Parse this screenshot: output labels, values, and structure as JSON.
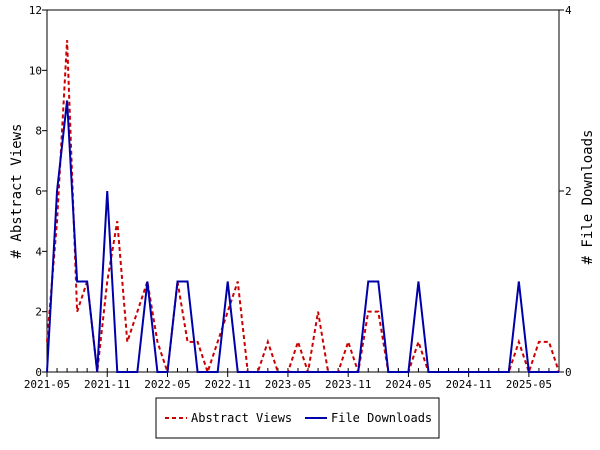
{
  "chart_data": {
    "type": "line",
    "ylabel": "# Abstract Views",
    "y2label": "# File Downloads",
    "ylim": [
      0,
      12
    ],
    "y2lim": [
      0,
      4
    ],
    "yticks": [
      0,
      2,
      4,
      6,
      8,
      10,
      12
    ],
    "y2ticks": [
      0,
      2,
      4
    ],
    "x_start": "2021-05",
    "x_end": "2025-08",
    "xtick_labels": [
      "2021-05",
      "2021-11",
      "2022-05",
      "2022-11",
      "2023-05",
      "2023-11",
      "2024-05",
      "2024-11",
      "2025-05"
    ],
    "x": [
      "2021-05",
      "2021-06",
      "2021-07",
      "2021-08",
      "2021-09",
      "2021-10",
      "2021-11",
      "2021-12",
      "2022-01",
      "2022-02",
      "2022-03",
      "2022-04",
      "2022-05",
      "2022-06",
      "2022-07",
      "2022-08",
      "2022-09",
      "2022-10",
      "2022-11",
      "2022-12",
      "2023-01",
      "2023-02",
      "2023-03",
      "2023-04",
      "2023-05",
      "2023-06",
      "2023-07",
      "2023-08",
      "2023-09",
      "2023-10",
      "2023-11",
      "2023-12",
      "2024-01",
      "2024-02",
      "2024-03",
      "2024-04",
      "2024-05",
      "2024-06",
      "2024-07",
      "2024-08",
      "2024-09",
      "2024-10",
      "2024-11",
      "2024-12",
      "2025-01",
      "2025-02",
      "2025-03",
      "2025-04",
      "2025-05",
      "2025-06",
      "2025-07",
      "2025-08"
    ],
    "series": [
      {
        "name": "Abstract Views",
        "axis": "left",
        "color": "#cc0000",
        "style": "dashed",
        "values": [
          1,
          5,
          11,
          2,
          3,
          0,
          3,
          5,
          1,
          2,
          3,
          1,
          0,
          3,
          1,
          1,
          0,
          1,
          2,
          3,
          0,
          0,
          1,
          0,
          0,
          1,
          0,
          2,
          0,
          0,
          1,
          0,
          2,
          2,
          0,
          0,
          0,
          1,
          0,
          0,
          0,
          0,
          0,
          0,
          0,
          0,
          0,
          1,
          0,
          1,
          1,
          0
        ]
      },
      {
        "name": "File Downloads",
        "axis": "right",
        "color": "#0000aa",
        "style": "solid",
        "values": [
          0,
          2,
          3,
          1,
          1,
          0,
          2,
          0,
          0,
          0,
          1,
          0,
          0,
          1,
          1,
          0,
          0,
          0,
          1,
          0,
          0,
          0,
          0,
          0,
          0,
          0,
          0,
          0,
          0,
          0,
          0,
          0,
          1,
          1,
          0,
          0,
          0,
          1,
          0,
          0,
          0,
          0,
          0,
          0,
          0,
          0,
          0,
          1,
          0,
          0,
          0,
          0
        ]
      }
    ],
    "legend": {
      "position": "bottom",
      "items": [
        "Abstract Views",
        "File Downloads"
      ]
    },
    "grid": false
  }
}
